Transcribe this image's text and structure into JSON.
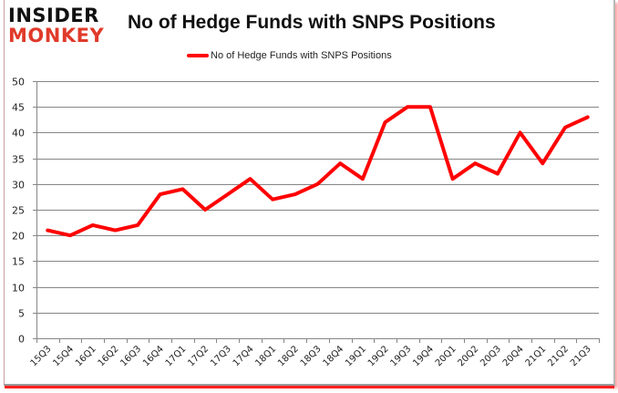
{
  "brand": {
    "line1": "INSIDER",
    "line2": "MONKEY",
    "line1_color": "#111111",
    "line2_color": "#e03a2a"
  },
  "chart_data": {
    "type": "line",
    "title": "No of Hedge Funds with SNPS Positions",
    "xlabel": "",
    "ylabel": "",
    "ylim": [
      0,
      50
    ],
    "yticks": [
      0,
      5,
      10,
      15,
      20,
      25,
      30,
      35,
      40,
      45,
      50
    ],
    "grid": true,
    "legend_position": "top",
    "categories": [
      "15Q3",
      "15Q4",
      "16Q1",
      "16Q2",
      "16Q3",
      "16Q4",
      "17Q1",
      "17Q2",
      "17Q3",
      "17Q4",
      "18Q1",
      "18Q2",
      "18Q3",
      "18Q4",
      "19Q1",
      "19Q2",
      "19Q3",
      "19Q4",
      "20Q1",
      "20Q2",
      "20Q3",
      "20Q4",
      "21Q1",
      "21Q2",
      "21Q3"
    ],
    "series": [
      {
        "name": "No of Hedge Funds with SNPS Positions",
        "color": "#ff0000",
        "values": [
          21,
          20,
          22,
          21,
          22,
          28,
          29,
          25,
          28,
          31,
          27,
          28,
          30,
          34,
          31,
          42,
          45,
          45,
          31,
          34,
          32,
          40,
          34,
          41,
          43
        ]
      }
    ]
  }
}
